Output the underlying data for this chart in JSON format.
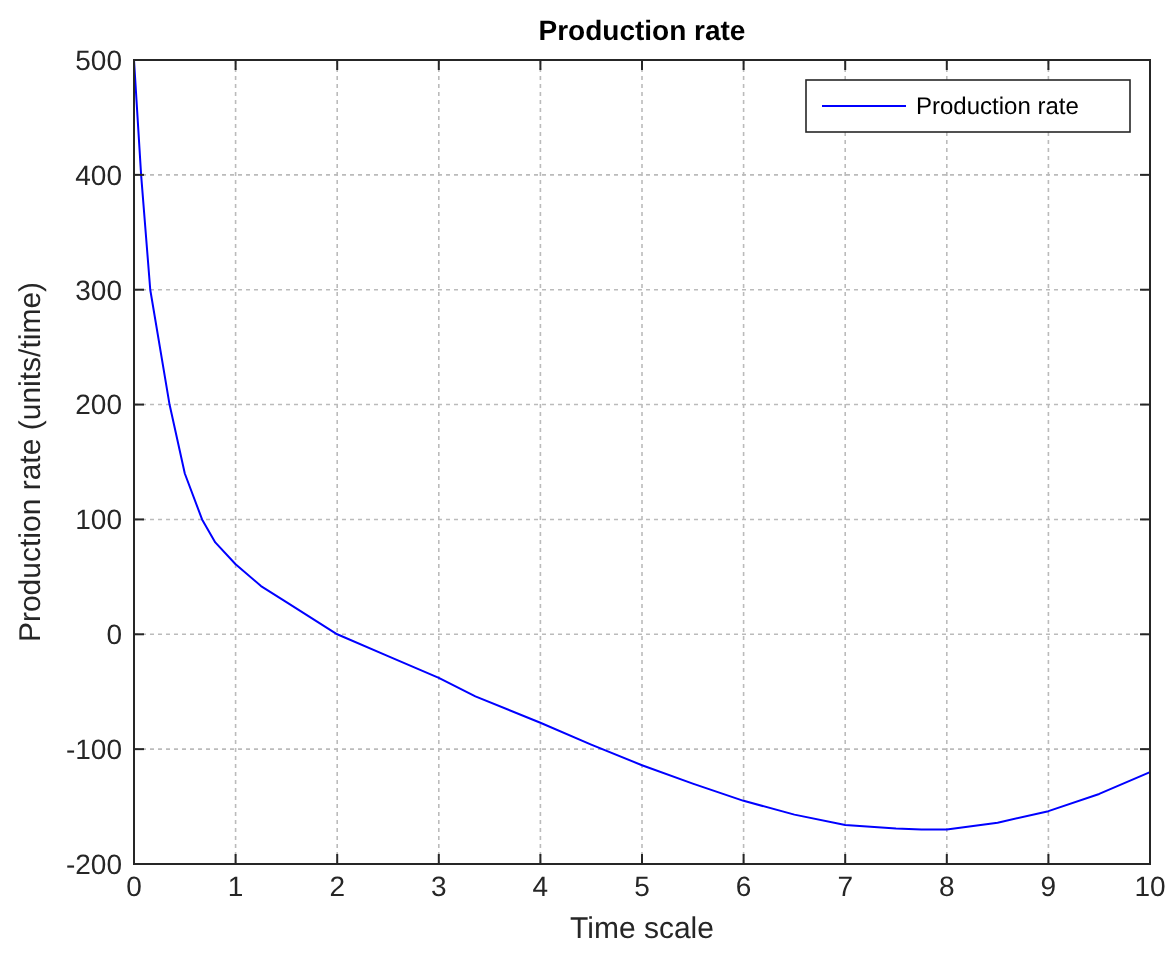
{
  "chart_data": {
    "type": "line",
    "title": "Production rate",
    "xlabel": "Time scale",
    "ylabel": "Production rate (units/time)",
    "xlim": [
      0,
      10
    ],
    "xticks": [
      0,
      1,
      2,
      3,
      4,
      5,
      6,
      7,
      8,
      9,
      10
    ],
    "ylim": [
      -200,
      500
    ],
    "yticks": [
      -200,
      -100,
      0,
      100,
      200,
      300,
      400,
      500
    ],
    "grid": true,
    "legend": "top right",
    "series": [
      {
        "name": "Production rate",
        "color": "#0000ff",
        "x": [
          0,
          0.07,
          0.16,
          0.35,
          0.5,
          0.67,
          0.8,
          1,
          1.25,
          1.5,
          2,
          2.5,
          3,
          3.36,
          4,
          4.5,
          5,
          5.5,
          6,
          6.5,
          7,
          7.5,
          7.75,
          8,
          8.5,
          9,
          9.5,
          10
        ],
        "values": [
          500,
          400,
          300,
          200,
          140,
          100,
          80,
          61,
          42,
          28,
          0,
          -19,
          -38,
          -54,
          -77,
          -96,
          -114,
          -130,
          -145,
          -157,
          -166,
          -169,
          -170,
          -170,
          -164,
          -154,
          -139,
          -120
        ]
      }
    ]
  }
}
